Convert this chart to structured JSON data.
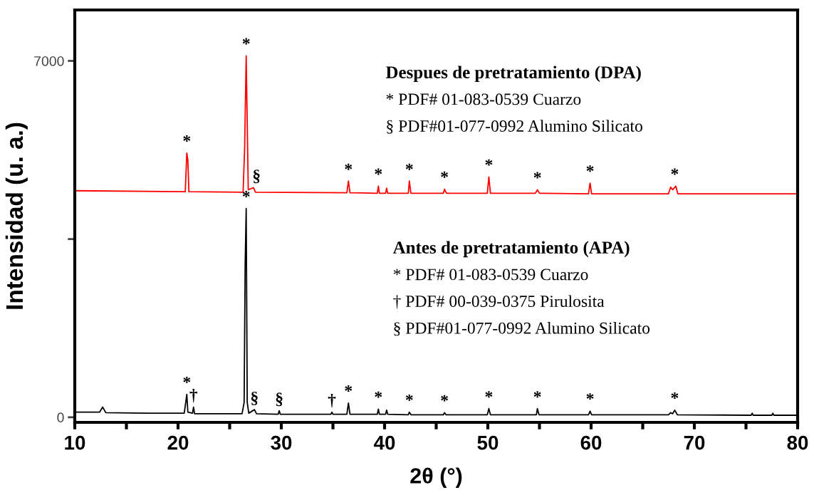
{
  "chart_data": {
    "type": "line",
    "xlabel": "2θ (°)",
    "ylabel": "Intensidad (u. a.)",
    "xlim": [
      10,
      80
    ],
    "ylim": [
      -100,
      8000
    ],
    "xticks": [
      10,
      {
        "value": 15,
        "label": null
      },
      20,
      {
        "value": 25,
        "label": null
      },
      30,
      {
        "value": 35,
        "label": null
      },
      40,
      {
        "value": 45,
        "label": null
      },
      50,
      {
        "value": 55,
        "label": null
      },
      60,
      {
        "value": 65,
        "label": null
      },
      70,
      {
        "value": 75,
        "label": null
      },
      80
    ],
    "yticks": [
      0,
      {
        "value": 3500,
        "label": null
      },
      7000
    ],
    "grid": false,
    "marker": "none",
    "line_style": "solid",
    "series": [
      {
        "color": "#ff0000",
        "x": [
          10,
          20.7,
          20.85,
          20.95,
          21.05,
          26.3,
          26.45,
          26.6,
          26.7,
          26.8,
          27.3,
          27.5,
          36.35,
          36.5,
          36.65,
          39.3,
          39.4,
          39.5,
          40.1,
          40.2,
          40.3,
          42.3,
          42.4,
          42.55,
          45.7,
          45.8,
          46.0,
          49.95,
          50.1,
          50.25,
          54.6,
          54.8,
          55.0,
          59.75,
          59.9,
          60.05,
          67.5,
          67.7,
          67.9,
          68.2,
          68.4,
          80
        ],
        "values": [
          4450,
          4430,
          5190,
          5050,
          4430,
          4420,
          5290,
          7100,
          5780,
          4470,
          4510,
          4420,
          4410,
          4640,
          4410,
          4400,
          4540,
          4400,
          4400,
          4500,
          4400,
          4400,
          4640,
          4400,
          4400,
          4480,
          4400,
          4400,
          4720,
          4400,
          4400,
          4470,
          4400,
          4390,
          4600,
          4390,
          4390,
          4520,
          4470,
          4540,
          4390,
          4390
        ]
      },
      {
        "color": "#000000",
        "x": [
          10,
          12.4,
          12.7,
          13.0,
          17,
          20.6,
          20.75,
          20.85,
          20.95,
          21.4,
          21.5,
          21.6,
          26.2,
          26.4,
          26.5,
          26.6,
          26.7,
          26.85,
          27.4,
          27.6,
          29.7,
          29.8,
          29.9,
          34.8,
          34.9,
          35.0,
          36.35,
          36.5,
          36.65,
          39.3,
          39.4,
          39.5,
          40.1,
          40.2,
          40.3,
          42.3,
          42.4,
          42.55,
          45.7,
          45.8,
          45.95,
          49.95,
          50.1,
          50.25,
          54.7,
          54.8,
          54.95,
          59.75,
          59.9,
          60.05,
          67.5,
          67.7,
          67.9,
          68.1,
          68.35,
          75.5,
          75.6,
          75.7,
          77.5,
          77.6,
          77.7,
          80
        ],
        "values": [
          100,
          100,
          200,
          90,
          80,
          80,
          300,
          450,
          100,
          80,
          200,
          70,
          70,
          290,
          3000,
          4100,
          290,
          80,
          150,
          70,
          60,
          130,
          60,
          60,
          100,
          60,
          60,
          280,
          60,
          60,
          160,
          60,
          60,
          140,
          60,
          50,
          100,
          50,
          50,
          90,
          50,
          50,
          170,
          50,
          50,
          170,
          50,
          50,
          120,
          50,
          50,
          90,
          70,
          140,
          50,
          40,
          80,
          40,
          40,
          80,
          40,
          40
        ]
      }
    ],
    "annotations": [
      "Despues de pretratamiento (DPA)",
      "* PDF# 01-083-0539 Cuarzo",
      "§ PDF#01-077-0992 Alumino Silicato",
      "Antes de pretratamiento (APA)",
      "* PDF# 01-083-0539 Cuarzo",
      "† PDF# 00-039-0375 Pirulosita",
      "§ PDF#01-077-0992 Alumino Silicato",
      {
        "text": "*",
        "x": 20.85,
        "y": 5190
      },
      {
        "text": "*",
        "x": 26.6,
        "y": 7100
      },
      {
        "text": "§",
        "x": 27.6,
        "y": 4510
      },
      {
        "text": "*",
        "x": 36.5,
        "y": 4635
      },
      {
        "text": "*",
        "x": 39.4,
        "y": 4540
      },
      {
        "text": "*",
        "x": 42.4,
        "y": 4635
      },
      {
        "text": "*",
        "x": 45.8,
        "y": 4480
      },
      {
        "text": "*",
        "x": 50.1,
        "y": 4720
      },
      {
        "text": "*",
        "x": 54.8,
        "y": 4470
      },
      {
        "text": "*",
        "x": 59.9,
        "y": 4600
      },
      {
        "text": "*",
        "x": 68.1,
        "y": 4540
      },
      {
        "text": "*",
        "x": 20.85,
        "y": 450
      },
      {
        "text": "†",
        "x": 21.5,
        "y": 200
      },
      {
        "text": "*",
        "x": 26.6,
        "y": 4100
      },
      {
        "text": "§",
        "x": 27.4,
        "y": 150
      },
      {
        "text": "§",
        "x": 29.8,
        "y": 130
      },
      {
        "text": "†",
        "x": 34.9,
        "y": 100
      },
      {
        "text": "*",
        "x": 36.5,
        "y": 280
      },
      {
        "text": "*",
        "x": 39.4,
        "y": 160
      },
      {
        "text": "*",
        "x": 42.4,
        "y": 100
      },
      {
        "text": "*",
        "x": 45.8,
        "y": 90
      },
      {
        "text": "*",
        "x": 50.1,
        "y": 165
      },
      {
        "text": "*",
        "x": 54.8,
        "y": 165
      },
      {
        "text": "*",
        "x": 59.9,
        "y": 125
      },
      {
        "text": "*",
        "x": 68.1,
        "y": 140
      }
    ]
  }
}
